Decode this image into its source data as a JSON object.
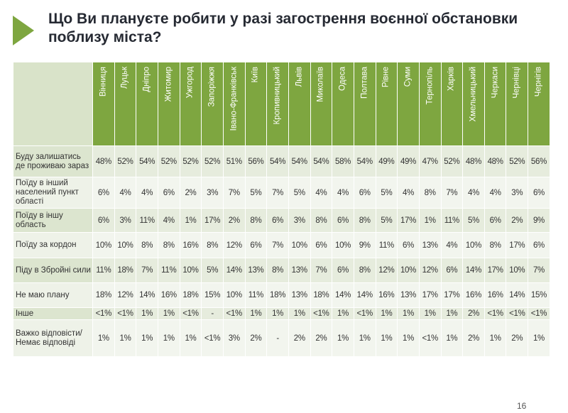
{
  "title": "Що Ви плануєте робити у разі загострення воєнної обстановки поблизу міста?",
  "page_number": "16",
  "colors": {
    "header_green": "#7ea640",
    "arrow_green": "#7ea640",
    "row_shade": "#dce5cf"
  },
  "chart_data": {
    "type": "table",
    "columns": [
      "Вінниця",
      "Луцьк",
      "Дніпро",
      "Житомир",
      "Ужгород",
      "Запоріжжя",
      "Івано-Франківськ",
      "Київ",
      "Кропивницький",
      "Львів",
      "Миколаїв",
      "Одеса",
      "Полтава",
      "Рівне",
      "Суми",
      "Тернопіль",
      "Харків",
      "Хмельницький",
      "Черкаси",
      "Чернівці",
      "Чернігів"
    ],
    "rows": [
      {
        "label": "Буду залишатись де проживаю зараз",
        "values": [
          "48%",
          "52%",
          "54%",
          "52%",
          "52%",
          "52%",
          "51%",
          "56%",
          "54%",
          "54%",
          "54%",
          "58%",
          "54%",
          "49%",
          "49%",
          "47%",
          "52%",
          "48%",
          "48%",
          "52%",
          "56%"
        ]
      },
      {
        "label": "Поїду в інший населений пункт області",
        "values": [
          "6%",
          "4%",
          "4%",
          "6%",
          "2%",
          "3%",
          "7%",
          "5%",
          "7%",
          "5%",
          "4%",
          "4%",
          "6%",
          "5%",
          "4%",
          "8%",
          "7%",
          "4%",
          "4%",
          "3%",
          "6%"
        ]
      },
      {
        "label": "Поїду в іншу область",
        "values": [
          "6%",
          "3%",
          "11%",
          "4%",
          "1%",
          "17%",
          "2%",
          "8%",
          "6%",
          "3%",
          "8%",
          "6%",
          "8%",
          "5%",
          "17%",
          "1%",
          "11%",
          "5%",
          "6%",
          "2%",
          "9%"
        ]
      },
      {
        "label": "Поїду за кордон",
        "values": [
          "10%",
          "10%",
          "8%",
          "8%",
          "16%",
          "8%",
          "12%",
          "6%",
          "7%",
          "10%",
          "6%",
          "10%",
          "9%",
          "11%",
          "6%",
          "13%",
          "4%",
          "10%",
          "8%",
          "17%",
          "6%"
        ]
      },
      {
        "label": "Піду в Збройні сили",
        "values": [
          "11%",
          "18%",
          "7%",
          "11%",
          "10%",
          "5%",
          "14%",
          "13%",
          "8%",
          "13%",
          "7%",
          "6%",
          "8%",
          "12%",
          "10%",
          "12%",
          "6%",
          "14%",
          "17%",
          "10%",
          "7%"
        ]
      },
      {
        "label": "Не маю плану",
        "values": [
          "18%",
          "12%",
          "14%",
          "16%",
          "18%",
          "15%",
          "10%",
          "11%",
          "18%",
          "13%",
          "18%",
          "14%",
          "14%",
          "16%",
          "13%",
          "17%",
          "17%",
          "16%",
          "16%",
          "14%",
          "15%"
        ]
      },
      {
        "label": "Інше",
        "values": [
          "<1%",
          "<1%",
          "1%",
          "1%",
          "<1%",
          "-",
          "<1%",
          "1%",
          "1%",
          "1%",
          "<1%",
          "1%",
          "<1%",
          "1%",
          "1%",
          "1%",
          "1%",
          "2%",
          "<1%",
          "<1%",
          "<1%"
        ]
      },
      {
        "label": "Важко відповісти/Немає відповіді",
        "values": [
          "1%",
          "1%",
          "1%",
          "1%",
          "1%",
          "<1%",
          "3%",
          "2%",
          "-",
          "2%",
          "2%",
          "1%",
          "1%",
          "1%",
          "1%",
          "<1%",
          "1%",
          "2%",
          "1%",
          "2%",
          "1%"
        ]
      }
    ]
  }
}
